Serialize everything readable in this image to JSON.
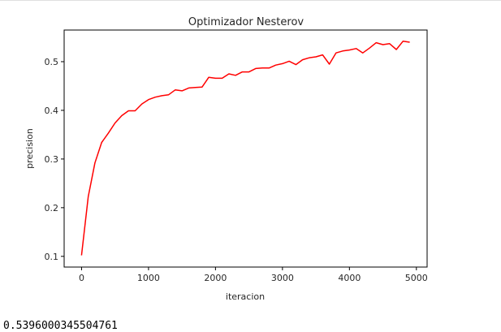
{
  "chart_data": {
    "type": "line",
    "title": "Optimizador Nesterov",
    "xlabel": "iteracion",
    "ylabel": "precision",
    "xlim": [
      -260,
      5160
    ],
    "ylim": [
      0.078,
      0.565
    ],
    "xticks": [
      0,
      1000,
      2000,
      3000,
      4000,
      5000
    ],
    "yticks": [
      0.1,
      0.2,
      0.3,
      0.4,
      0.5
    ],
    "xtick_labels": [
      "0",
      "1000",
      "2000",
      "3000",
      "4000",
      "5000"
    ],
    "ytick_labels": [
      "0.1",
      "0.2",
      "0.3",
      "0.4",
      "0.5"
    ],
    "grid": false,
    "series": [
      {
        "color": "#ff0000",
        "x": [
          0,
          100,
          200,
          300,
          400,
          500,
          600,
          700,
          800,
          900,
          1000,
          1100,
          1200,
          1300,
          1400,
          1500,
          1600,
          1700,
          1800,
          1900,
          2000,
          2100,
          2200,
          2300,
          2400,
          2500,
          2600,
          2700,
          2800,
          2900,
          3000,
          3100,
          3200,
          3300,
          3400,
          3500,
          3600,
          3700,
          3800,
          3900,
          4000,
          4100,
          4200,
          4300,
          4400,
          4500,
          4600,
          4700,
          4800,
          4900
        ],
        "y": [
          0.102,
          0.223,
          0.292,
          0.334,
          0.353,
          0.374,
          0.389,
          0.399,
          0.399,
          0.413,
          0.422,
          0.427,
          0.43,
          0.432,
          0.442,
          0.44,
          0.446,
          0.447,
          0.448,
          0.468,
          0.466,
          0.466,
          0.475,
          0.472,
          0.479,
          0.479,
          0.486,
          0.487,
          0.487,
          0.493,
          0.496,
          0.501,
          0.494,
          0.504,
          0.508,
          0.51,
          0.514,
          0.495,
          0.518,
          0.522,
          0.524,
          0.527,
          0.518,
          0.528,
          0.539,
          0.535,
          0.537,
          0.525,
          0.542,
          0.54
        ]
      }
    ]
  },
  "output": {
    "text": "0.5396000345504761"
  }
}
